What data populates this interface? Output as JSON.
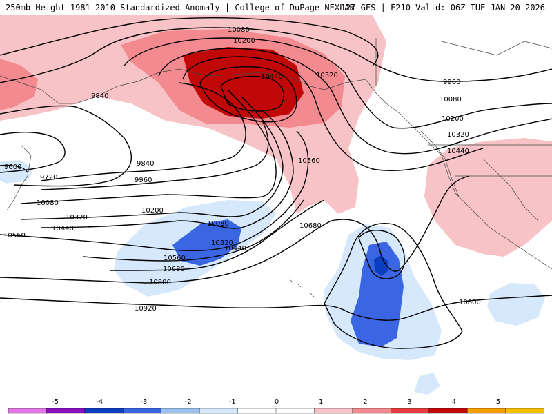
{
  "header": {
    "left_title": "250mb Height 1981-2010 Standardized Anomaly | College of DuPage NEXLAB",
    "right_title": "12Z GFS | F210 Valid: 06Z TUE JAN 20 2026"
  },
  "contour_labels": {
    "c1": "10080",
    "c2": "10200",
    "c3": "10440",
    "c4": "10320",
    "c5": "9960",
    "c6": "10080",
    "c7": "10200",
    "c8": "10320",
    "c9": "10440",
    "c10": "9840",
    "c11": "10560",
    "c12": "9600",
    "c13": "9720",
    "c14": "9840",
    "c15": "9960",
    "c16": "10080",
    "c17": "10200",
    "c18": "10320",
    "c19": "10440",
    "c20": "10560",
    "c21": "10080",
    "c22": "10320",
    "c23": "10440",
    "c24": "10560",
    "c25": "10680",
    "c26": "10800",
    "c27": "10680",
    "c28": "10920",
    "c29": "10800"
  },
  "legend": {
    "ticks": [
      "-5",
      "-4",
      "-3",
      "-2",
      "-1",
      "0",
      "1",
      "2",
      "3",
      "4",
      "5"
    ],
    "colors": [
      "#e377e6",
      "#8a0fc0",
      "#0b3fbf",
      "#3a66e4",
      "#9cc2f2",
      "#d6e8fb",
      "#ffffff",
      "#ffffff",
      "#f7c3c6",
      "#f28a8f",
      "#e53d3f",
      "#c00808",
      "#f7a000",
      "#f5c000"
    ]
  }
}
